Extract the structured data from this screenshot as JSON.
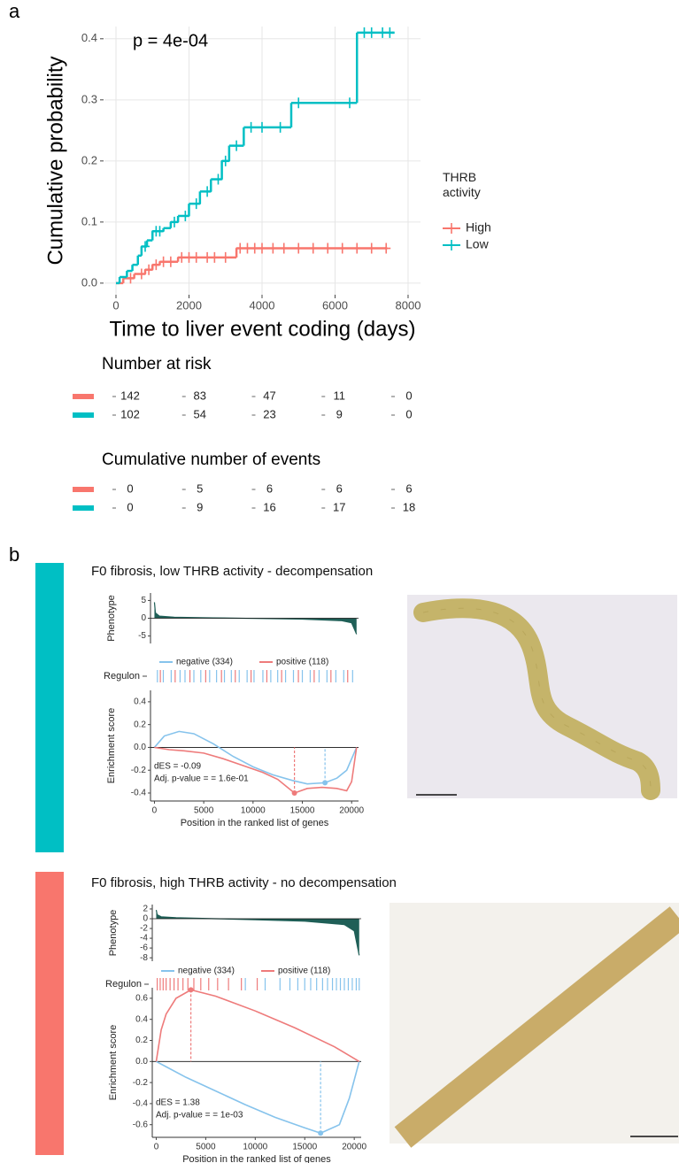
{
  "chart_data": [
    {
      "type": "step",
      "panel_label": "a",
      "annotation": "p = 4e-04",
      "xlabel": "Time to liver event coding (days)",
      "ylabel": "Cumulative probability",
      "xlim": [
        -315,
        8340
      ],
      "xticks": [
        0,
        2000,
        4000,
        6000,
        8000
      ],
      "ylim": [
        -0.019,
        0.42
      ],
      "yticks": [
        {
          "value": 0,
          "label": "0.0"
        },
        0.1,
        0.2,
        0.3,
        0.4
      ],
      "grid": true,
      "legend_title": "THRB activity",
      "legend_position": "right",
      "risk_title": "Number at risk",
      "events_title": "Cumulative number of events",
      "series": [
        {
          "name": "High",
          "color": "#f8766d",
          "x": [
            0,
            200,
            500,
            800,
            1000,
            1200,
            1700,
            3300,
            7400
          ],
          "values": [
            0,
            0.008,
            0.015,
            0.022,
            0.03,
            0.035,
            0.042,
            0.057,
            0.057
          ],
          "censor_x": [
            400,
            700,
            900,
            1100,
            1300,
            1500,
            1800,
            2000,
            2200,
            2500,
            2700,
            3000,
            3400,
            3600,
            3800,
            4000,
            4300,
            4600,
            5000,
            5400,
            5800,
            6200,
            6600,
            7000,
            7400
          ],
          "censor_values": [
            0.008,
            0.015,
            0.022,
            0.03,
            0.035,
            0.035,
            0.042,
            0.042,
            0.042,
            0.042,
            0.042,
            0.042,
            0.057,
            0.057,
            0.057,
            0.057,
            0.057,
            0.057,
            0.057,
            0.057,
            0.057,
            0.057,
            0.057,
            0.057,
            0.057
          ],
          "at_risk": [
            142,
            83,
            47,
            11,
            0
          ],
          "cum_events": [
            0,
            5,
            6,
            6,
            6
          ]
        },
        {
          "name": "Low",
          "color": "#00bfc4",
          "x": [
            0,
            100,
            300,
            450,
            600,
            700,
            850,
            1000,
            1300,
            1500,
            1700,
            2000,
            2300,
            2600,
            2900,
            3100,
            3500,
            4800,
            6600,
            7600
          ],
          "values": [
            0,
            0.01,
            0.02,
            0.03,
            0.045,
            0.06,
            0.07,
            0.085,
            0.09,
            0.1,
            0.11,
            0.13,
            0.15,
            0.17,
            0.2,
            0.225,
            0.255,
            0.295,
            0.41,
            0.41
          ],
          "censor_x": [
            800,
            1100,
            1200,
            1600,
            1900,
            2200,
            2500,
            2800,
            3000,
            3300,
            3700,
            4000,
            4500,
            5000,
            6400,
            6800,
            7000,
            7300,
            7500
          ],
          "censor_values": [
            0.06,
            0.085,
            0.085,
            0.1,
            0.11,
            0.13,
            0.15,
            0.17,
            0.2,
            0.225,
            0.255,
            0.255,
            0.255,
            0.295,
            0.295,
            0.41,
            0.41,
            0.41,
            0.41
          ],
          "at_risk": [
            102,
            54,
            23,
            9,
            0
          ],
          "cum_events": [
            0,
            9,
            16,
            17,
            18
          ]
        }
      ]
    },
    {
      "type": "gsea",
      "panel_label": "b",
      "title": "F0 fibrosis, low THRB activity - decompensation",
      "side_color": "#00bfc4",
      "xlabel": "Position in the ranked list of genes",
      "ylabel": "Enrichment score",
      "barcode_label": "Regulon",
      "xlim": [
        -400,
        20700
      ],
      "xticks": [
        0,
        5000,
        10000,
        15000,
        20000
      ],
      "ylim": [
        -0.47,
        0.5
      ],
      "yticks": [
        0.4,
        0.2,
        {
          "value": 0,
          "label": "0.0"
        },
        -0.2,
        -0.4
      ],
      "phenotype": {
        "ylabel": "Phenotype",
        "color": "#1f5f57",
        "ylim": [
          -7.1,
          7.1
        ],
        "yticks": [
          5,
          0,
          -5
        ],
        "x": [
          0,
          100,
          500,
          2000,
          6000,
          10000,
          15000,
          19000,
          20000,
          20500
        ],
        "values": [
          4.5,
          1.5,
          0.6,
          0.3,
          0.1,
          -0.05,
          -0.25,
          -0.7,
          -1.3,
          -4.5
        ]
      },
      "annotations": [
        "dES = -0.09",
        "Adj. p-value = = 1.6e-01"
      ],
      "series": [
        {
          "name": "negative (334)",
          "color": "#86c3ec",
          "x": [
            0,
            1000,
            2500,
            4000,
            6000,
            8000,
            10000,
            12000,
            14000,
            15500,
            17300,
            18500,
            19500,
            20500
          ],
          "values": [
            0,
            0.1,
            0.14,
            0.12,
            0.03,
            -0.08,
            -0.17,
            -0.24,
            -0.29,
            -0.32,
            -0.31,
            -0.27,
            -0.2,
            0
          ],
          "peak_x": 17300,
          "peak_value": -0.31,
          "hits": [
            300,
            900,
            1700,
            2600,
            3100,
            4000,
            4700,
            5600,
            6300,
            7100,
            7800,
            8600,
            9400,
            10100,
            11000,
            11800,
            12500,
            13300,
            14100,
            15000,
            15800,
            16700,
            17500,
            18400,
            19200,
            20100
          ]
        },
        {
          "name": "positive (118)",
          "color": "#ee7b7b",
          "x": [
            0,
            1500,
            3000,
            5000,
            7000,
            9000,
            11000,
            12500,
            14200,
            15500,
            17000,
            18500,
            19500,
            20000,
            20500
          ],
          "values": [
            0,
            -0.02,
            -0.03,
            -0.05,
            -0.1,
            -0.16,
            -0.22,
            -0.28,
            -0.4,
            -0.36,
            -0.35,
            -0.36,
            -0.38,
            -0.3,
            0
          ],
          "peak_x": 14200,
          "peak_value": -0.4,
          "hits": [
            600,
            2100,
            3600,
            5200,
            6800,
            8200,
            9800,
            11400,
            12900,
            14600,
            16200,
            17900,
            19600
          ]
        }
      ]
    },
    {
      "type": "gsea",
      "title": "F0 fibrosis, high THRB activity - no decompensation",
      "side_color": "#f8766d",
      "xlabel": "Position in the ranked list of genes",
      "ylabel": "Enrichment score",
      "barcode_label": "Regulon",
      "xlim": [
        -400,
        20700
      ],
      "xticks": [
        0,
        5000,
        10000,
        15000,
        20000
      ],
      "ylim": [
        -0.72,
        0.7
      ],
      "yticks": [
        0.6,
        0.4,
        0.2,
        {
          "value": 0,
          "label": "0.0"
        },
        -0.2,
        -0.4,
        -0.6
      ],
      "phenotype": {
        "ylabel": "Phenotype",
        "color": "#1f5f57",
        "ylim": [
          -8.7,
          2.9
        ],
        "yticks": [
          2,
          0,
          -2,
          -4,
          -6,
          -8
        ],
        "x": [
          0,
          100,
          500,
          2000,
          6000,
          10000,
          15000,
          19000,
          20000,
          20500
        ],
        "values": [
          1.8,
          0.8,
          0.4,
          0.2,
          0,
          -0.2,
          -0.5,
          -1.2,
          -2.5,
          -7.5
        ]
      },
      "annotations": [
        "dES = 1.38",
        "Adj. p-value = = 1e-03"
      ],
      "series": [
        {
          "name": "negative (334)",
          "color": "#86c3ec",
          "x": [
            0,
            1000,
            3000,
            6000,
            9000,
            12000,
            15000,
            16600,
            18500,
            19500,
            20500
          ],
          "values": [
            0,
            -0.05,
            -0.15,
            -0.28,
            -0.41,
            -0.53,
            -0.63,
            -0.68,
            -0.6,
            -0.35,
            0
          ],
          "peak_x": 16600,
          "peak_value": -0.68,
          "hits": [
            9000,
            11000,
            12500,
            13500,
            14300,
            15000,
            15600,
            16200,
            16800,
            17300,
            17800,
            18200,
            18600,
            19000,
            19400,
            19800,
            20200,
            20500
          ]
        },
        {
          "name": "positive (118)",
          "color": "#ee7b7b",
          "x": [
            0,
            500,
            1000,
            2000,
            3500,
            6000,
            10000,
            14000,
            18000,
            20500
          ],
          "values": [
            0,
            0.3,
            0.45,
            0.6,
            0.68,
            0.62,
            0.48,
            0.32,
            0.14,
            0
          ],
          "peak_x": 3500,
          "peak_value": 0.68,
          "hits": [
            100,
            400,
            700,
            1000,
            1400,
            1800,
            2200,
            2700,
            3200,
            3800,
            4500,
            5300,
            6200,
            7300,
            8600,
            10200
          ]
        }
      ]
    }
  ]
}
